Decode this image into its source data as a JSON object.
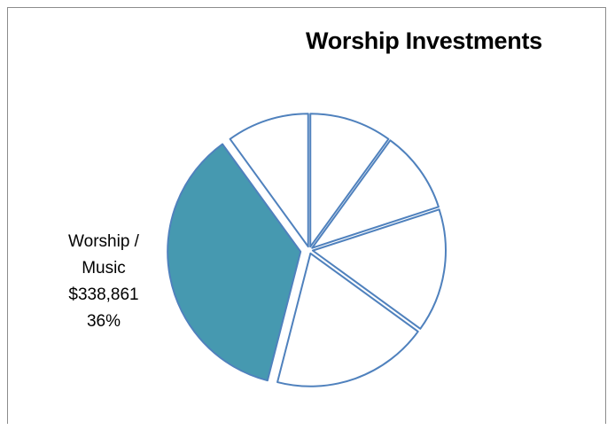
{
  "chart_data": {
    "type": "pie",
    "title": "Worship Investments",
    "slices": [
      {
        "value": 10,
        "highlighted": false
      },
      {
        "value": 10,
        "highlighted": false
      },
      {
        "value": 15,
        "highlighted": false
      },
      {
        "value": 19,
        "highlighted": false
      },
      {
        "value": 36,
        "highlighted": true,
        "label_lines": [
          "Worship /",
          "Music",
          "$338,861",
          "36%"
        ]
      },
      {
        "value": 10,
        "highlighted": false
      }
    ],
    "colors": {
      "highlight_fill": "#4699b0",
      "default_fill": "#ffffff",
      "stroke": "#4f81bd"
    }
  }
}
